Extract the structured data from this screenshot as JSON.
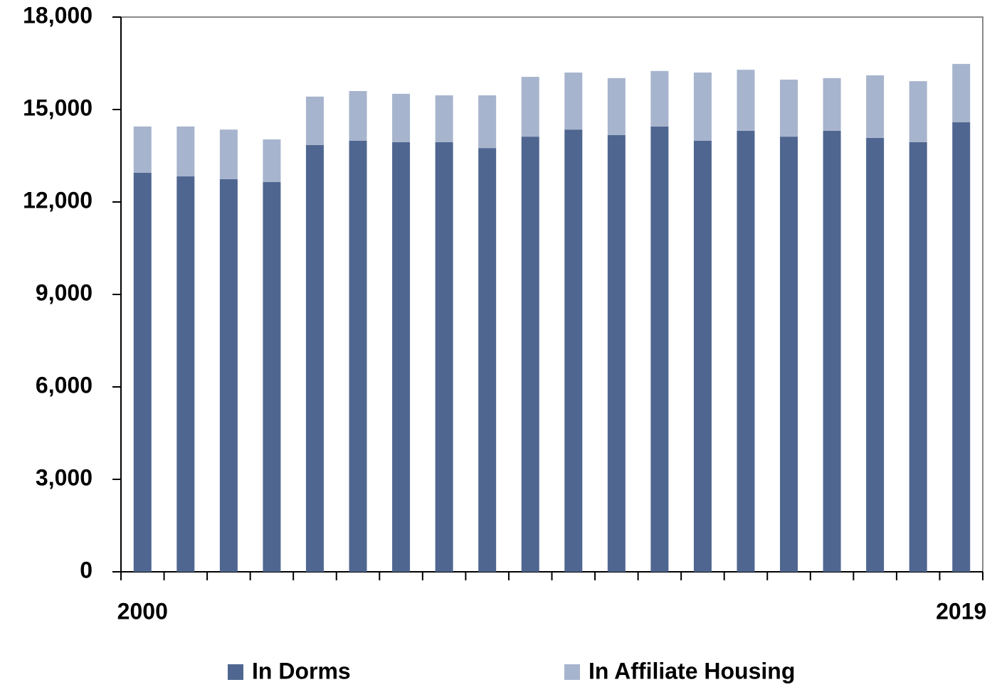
{
  "chart_data": {
    "type": "bar",
    "stacked": true,
    "categories": [
      "2000",
      null,
      null,
      null,
      null,
      null,
      null,
      null,
      null,
      null,
      null,
      null,
      null,
      null,
      null,
      null,
      null,
      null,
      null,
      "2019"
    ],
    "series": [
      {
        "name": "In Dorms",
        "color": "#4f6690",
        "values": [
          12950,
          12830,
          12740,
          12650,
          13850,
          13990,
          13940,
          13940,
          13750,
          14120,
          14350,
          14170,
          14450,
          13990,
          14310,
          14120,
          14310,
          14080,
          13940,
          14590
        ]
      },
      {
        "name": "In Affiliate Housing",
        "color": "#a7b4cd",
        "values": [
          1500,
          1620,
          1610,
          1380,
          1570,
          1610,
          1570,
          1520,
          1710,
          1940,
          1850,
          1850,
          1800,
          2210,
          1980,
          1850,
          1710,
          2030,
          1980,
          1890
        ]
      }
    ],
    "ylim": [
      0,
      18000
    ],
    "yticks": [
      0,
      {
        "value": 3000,
        "label": "3,000"
      },
      {
        "value": 6000,
        "label": "6,000"
      },
      {
        "value": 9000,
        "label": "9,000"
      },
      {
        "value": 12000,
        "label": "12,000"
      },
      {
        "value": 15000,
        "label": "15,000"
      },
      {
        "value": 18000,
        "label": "18,000"
      }
    ],
    "legend": "bottom"
  }
}
